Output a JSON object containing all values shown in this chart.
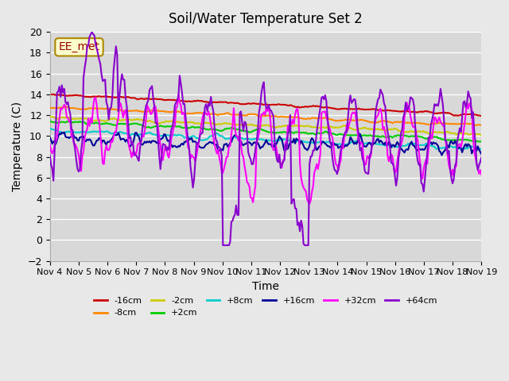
{
  "title": "Soil/Water Temperature Set 2",
  "xlabel": "Time",
  "ylabel": "Temperature (C)",
  "annotation": "EE_met",
  "ylim": [
    -2,
    20
  ],
  "yticks": [
    -2,
    0,
    2,
    4,
    6,
    8,
    10,
    12,
    14,
    16,
    18,
    20
  ],
  "x_labels": [
    "Nov 4",
    "Nov 5",
    "Nov 6",
    "Nov 7",
    "Nov 8",
    "Nov 9",
    "Nov 10",
    "Nov 11",
    "Nov 12",
    "Nov 13",
    "Nov 14",
    "Nov 15",
    "Nov 16",
    "Nov 17",
    "Nov 18",
    "Nov 19"
  ],
  "series": [
    {
      "label": "-16cm",
      "color": "#cc0000",
      "base": 13.8,
      "trend": -0.12,
      "noise": 0.15,
      "depth_factor": 0.0
    },
    {
      "label": "-8cm",
      "color": "#ff8800",
      "base": 12.8,
      "trend": -0.11,
      "noise": 0.18,
      "depth_factor": 0.0
    },
    {
      "label": "-2cm",
      "color": "#cccc00",
      "base": 11.8,
      "trend": -0.1,
      "noise": 0.22,
      "depth_factor": 0.0
    },
    {
      "label": "+2cm",
      "color": "#00cc00",
      "base": 11.4,
      "trend": -0.1,
      "noise": 0.25,
      "depth_factor": 0.0
    },
    {
      "label": "+8cm",
      "color": "#00cccc",
      "base": 10.7,
      "trend": -0.09,
      "noise": 0.2,
      "depth_factor": 0.0
    },
    {
      "label": "+16cm",
      "color": "#000099",
      "base": 9.8,
      "trend": -0.06,
      "noise": 0.5,
      "depth_factor": 0.0
    },
    {
      "label": "+32cm",
      "color": "#ff00ff",
      "base": 10.0,
      "trend": -0.05,
      "noise": 2.5,
      "depth_factor": 1.0
    },
    {
      "label": "+64cm",
      "color": "#8800cc",
      "base": 9.5,
      "trend": -0.04,
      "noise": 3.5,
      "depth_factor": 2.0
    }
  ],
  "n_points": 360,
  "background_color": "#e8e8e8",
  "plot_bg_color": "#d8d8d8",
  "grid_color": "#ffffff",
  "figsize": [
    6.4,
    4.8
  ],
  "dpi": 100
}
